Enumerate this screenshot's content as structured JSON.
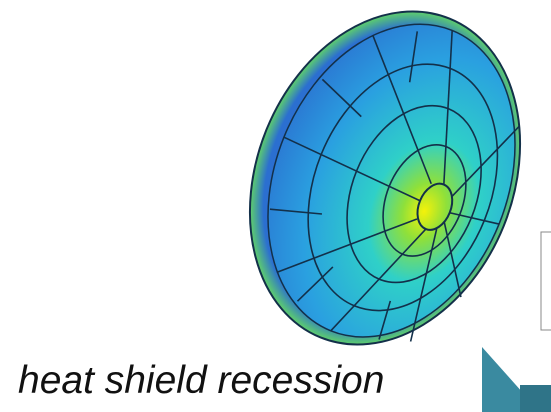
{
  "caption": "heat shield recession"
}
